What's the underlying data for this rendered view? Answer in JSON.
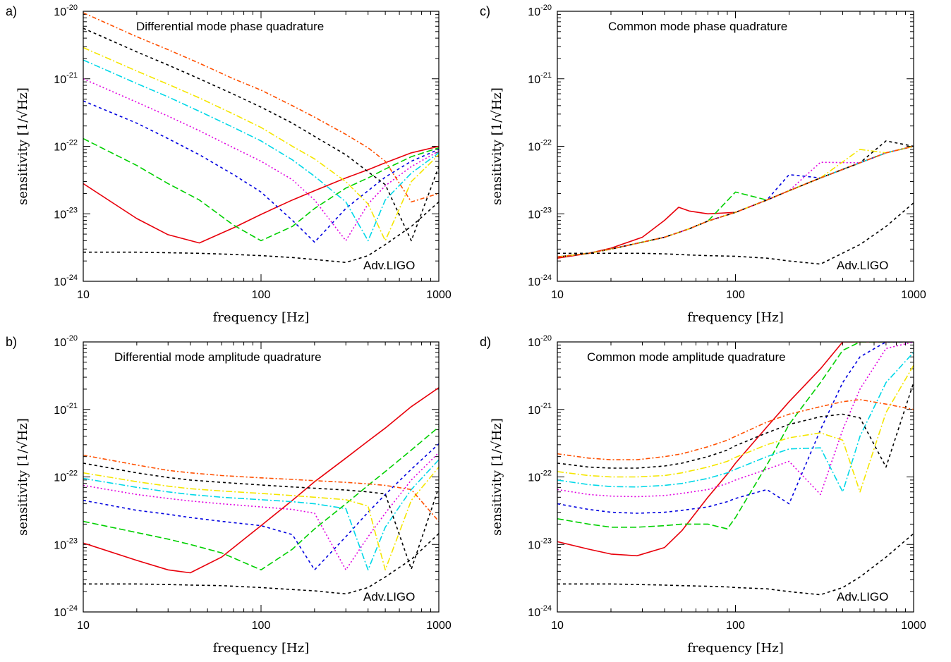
{
  "chart_data": [
    {
      "panel_label": "a)",
      "type": "line",
      "title": "Differential mode phase quadrature",
      "xlabel": "frequency [Hz]",
      "ylabel": "sensitivity [1/√Hz]",
      "xscale": "log",
      "yscale": "log",
      "xlim": [
        10,
        1000
      ],
      "ylim": [
        1e-24,
        1e-20
      ],
      "xticks": [
        "10",
        "100",
        "1000"
      ],
      "yticks": [
        {
          "base": "10",
          "exp": "-24"
        },
        {
          "base": "10",
          "exp": "-23"
        },
        {
          "base": "10",
          "exp": "-22"
        },
        {
          "base": "10",
          "exp": "-21"
        },
        {
          "base": "10",
          "exp": "-20"
        }
      ],
      "annotation": "Adv.LIGO",
      "x": [
        10,
        20,
        30,
        45,
        70,
        100,
        150,
        200,
        300,
        400,
        500,
        700,
        1000
      ],
      "series": [
        {
          "color": "#e8000b",
          "dash": "solid",
          "values": [
            2.8e-23,
            8.5e-24,
            4.9e-24,
            3.7e-24,
            6.2e-24,
            9.8e-24,
            1.6e-23,
            2.2e-23,
            3.4e-23,
            4.5e-23,
            5.7e-23,
            8e-23,
            1e-22
          ]
        },
        {
          "color": "#00d000",
          "dash": "dash",
          "values": [
            1.3e-22,
            5.2e-23,
            2.8e-23,
            1.6e-23,
            6.8e-24,
            4e-24,
            6.5e-24,
            1.2e-23,
            2.4e-23,
            3.4e-23,
            4.6e-23,
            7e-23,
            9.5e-23
          ]
        },
        {
          "color": "#0000e0",
          "dash": "short",
          "values": [
            4.7e-22,
            2.2e-22,
            1.3e-22,
            7.5e-23,
            3.8e-23,
            2.1e-23,
            8e-24,
            3.8e-24,
            1.2e-23,
            2.2e-23,
            3.5e-23,
            6e-23,
            9e-23
          ]
        },
        {
          "color": "#e000e0",
          "dash": "dot",
          "values": [
            1e-21,
            4.5e-22,
            2.8e-22,
            1.7e-22,
            9.5e-23,
            6e-23,
            3.2e-23,
            1.6e-23,
            4e-24,
            1.4e-23,
            2.6e-23,
            5e-23,
            8.5e-23
          ]
        },
        {
          "color": "#00d8e8",
          "dash": "dashdot",
          "values": [
            1.9e-21,
            8.5e-22,
            5.4e-22,
            3.3e-22,
            1.9e-22,
            1.2e-22,
            6.3e-23,
            3.6e-23,
            1.5e-23,
            4e-24,
            1.6e-23,
            4e-23,
            8e-23
          ]
        },
        {
          "color": "#f5e600",
          "dash": "dashdot",
          "values": [
            2.9e-21,
            1.3e-21,
            8.3e-22,
            5.2e-22,
            3e-22,
            1.9e-22,
            1e-22,
            6.5e-23,
            3e-23,
            1.4e-23,
            4e-24,
            3e-23,
            7.5e-23
          ]
        },
        {
          "color": "#000000",
          "dash": "short",
          "values": [
            5.6e-21,
            2.5e-21,
            1.6e-21,
            1e-21,
            5.9e-22,
            3.8e-22,
            2.2e-22,
            1.4e-22,
            7.5e-23,
            4.2e-23,
            2.7e-23,
            4e-24,
            5e-23
          ]
        },
        {
          "color": "#ff5000",
          "dash": "dashdot2",
          "values": [
            9.5e-21,
            4.2e-21,
            2.7e-21,
            1.7e-21,
            1e-21,
            6.8e-22,
            4e-22,
            2.7e-22,
            1.5e-22,
            9.5e-23,
            6e-23,
            1.5e-23,
            2e-23
          ]
        },
        {
          "color": "#000000",
          "dash": "short",
          "values": [
            2.7e-24,
            2.7e-24,
            2.65e-24,
            2.6e-24,
            2.5e-24,
            2.4e-24,
            2.25e-24,
            2.1e-24,
            1.9e-24,
            2.4e-24,
            3.5e-24,
            6.5e-24,
            1.5e-23
          ]
        }
      ]
    },
    {
      "panel_label": "b)",
      "type": "line",
      "title": "Differential mode amplitude quadrature",
      "xlabel": "frequency [Hz]",
      "ylabel": "sensitivity [1/√Hz]",
      "xscale": "log",
      "yscale": "log",
      "xlim": [
        10,
        1000
      ],
      "ylim": [
        1e-24,
        1e-20
      ],
      "xticks": [
        "10",
        "100",
        "1000"
      ],
      "yticks": [
        {
          "base": "10",
          "exp": "-24"
        },
        {
          "base": "10",
          "exp": "-23"
        },
        {
          "base": "10",
          "exp": "-22"
        },
        {
          "base": "10",
          "exp": "-21"
        },
        {
          "base": "10",
          "exp": "-20"
        }
      ],
      "annotation": "Adv.LIGO",
      "x": [
        10,
        20,
        30,
        40,
        60,
        100,
        150,
        200,
        300,
        400,
        500,
        700,
        1000
      ],
      "series": [
        {
          "color": "#e8000b",
          "dash": "solid",
          "values": [
            1.05e-23,
            5.8e-24,
            4.2e-24,
            3.8e-24,
            6.5e-24,
            1.9e-23,
            4.5e-23,
            8.5e-23,
            1.9e-22,
            3.4e-22,
            5.3e-22,
            1.1e-21,
            2.1e-21
          ]
        },
        {
          "color": "#00d000",
          "dash": "dash",
          "values": [
            2.2e-23,
            1.5e-23,
            1.2e-23,
            1e-23,
            7.5e-24,
            4.2e-24,
            8.5e-24,
            1.7e-23,
            4e-23,
            7.5e-23,
            1.2e-22,
            2.5e-22,
            5.5e-22
          ]
        },
        {
          "color": "#0000e0",
          "dash": "short",
          "values": [
            4.5e-23,
            3.2e-23,
            2.8e-23,
            2.5e-23,
            2.2e-23,
            1.9e-23,
            1.4e-23,
            4.2e-24,
            1.3e-23,
            3e-23,
            5.5e-23,
            1.3e-22,
            3.1e-22
          ]
        },
        {
          "color": "#e000e0",
          "dash": "dot",
          "values": [
            7.5e-23,
            5.5e-23,
            4.8e-23,
            4.4e-23,
            4e-23,
            3.6e-23,
            3.3e-23,
            2.9e-23,
            4.2e-24,
            1.3e-23,
            2.9e-23,
            9e-23,
            2.3e-22
          ]
        },
        {
          "color": "#00d8e8",
          "dash": "dashdot",
          "values": [
            9.5e-23,
            7e-23,
            6e-23,
            5.5e-23,
            5e-23,
            4.6e-23,
            4.3e-23,
            4e-23,
            3.4e-23,
            4.2e-24,
            1.8e-23,
            6.5e-23,
            1.8e-22
          ]
        },
        {
          "color": "#f5e600",
          "dash": "dashdot",
          "values": [
            1.15e-22,
            8.5e-23,
            7.3e-23,
            6.7e-23,
            6.2e-23,
            5.7e-23,
            5.3e-23,
            5e-23,
            4.6e-23,
            3.7e-23,
            4.2e-24,
            4.5e-23,
            1.4e-22
          ]
        },
        {
          "color": "#000000",
          "dash": "short",
          "values": [
            1.6e-22,
            1.15e-22,
            9.8e-23,
            9e-23,
            8.3e-23,
            7.6e-23,
            7.1e-23,
            6.8e-23,
            6.4e-23,
            6e-23,
            5.6e-23,
            4.3e-24,
            7e-23
          ]
        },
        {
          "color": "#ff5000",
          "dash": "dashdot2",
          "values": [
            2.1e-22,
            1.5e-22,
            1.25e-22,
            1.15e-22,
            1.05e-22,
            9.7e-23,
            9.2e-23,
            8.8e-23,
            8.3e-23,
            7.9e-23,
            7.5e-23,
            6.5e-23,
            2.2e-23
          ]
        },
        {
          "color": "#000000",
          "dash": "short",
          "values": [
            2.6e-24,
            2.6e-24,
            2.55e-24,
            2.5e-24,
            2.45e-24,
            2.3e-24,
            2.15e-24,
            2.05e-24,
            1.85e-24,
            2.3e-24,
            3.3e-24,
            6e-24,
            1.45e-23
          ]
        }
      ]
    },
    {
      "panel_label": "c)",
      "type": "line",
      "title": "Common mode phase quadrature",
      "xlabel": "frequency [Hz]",
      "ylabel": "sensitivity [1/√Hz]",
      "xscale": "log",
      "yscale": "log",
      "xlim": [
        10,
        1000
      ],
      "ylim": [
        1e-24,
        1e-20
      ],
      "xticks": [
        "10",
        "100",
        "1000"
      ],
      "yticks": [
        {
          "base": "10",
          "exp": "-24"
        },
        {
          "base": "10",
          "exp": "-23"
        },
        {
          "base": "10",
          "exp": "-22"
        },
        {
          "base": "10",
          "exp": "-21"
        },
        {
          "base": "10",
          "exp": "-20"
        }
      ],
      "annotation": "Adv.LIGO",
      "x": [
        10,
        15,
        20,
        30,
        40,
        48,
        55,
        70,
        100,
        150,
        200,
        300,
        500,
        700,
        1000
      ],
      "series": [
        {
          "color": "#e8000b",
          "dash": "solid",
          "values": [
            2.2e-24,
            2.6e-24,
            3.1e-24,
            4.5e-24,
            8e-24,
            1.25e-23,
            1.1e-23,
            1e-23,
            1.05e-23,
            1.6e-23,
            2.2e-23,
            3.4e-23,
            5.7e-23,
            8e-23,
            1e-22
          ]
        },
        {
          "color": "#00d000",
          "dash": "dash",
          "values": [
            2.3e-24,
            2.6e-24,
            3e-24,
            3.8e-24,
            4.5e-24,
            5.3e-24,
            6e-24,
            7.8e-24,
            2.1e-23,
            1.6e-23,
            2.2e-23,
            3.4e-23,
            5.7e-23,
            8e-23,
            1e-22
          ]
        },
        {
          "color": "#0000e0",
          "dash": "short",
          "values": [
            2.3e-24,
            2.6e-24,
            3e-24,
            3.8e-24,
            4.5e-24,
            5.3e-24,
            6e-24,
            7.8e-24,
            1.05e-23,
            1.6e-23,
            3.8e-23,
            3.4e-23,
            5.7e-23,
            8e-23,
            1e-22
          ]
        },
        {
          "color": "#e000e0",
          "dash": "dot",
          "values": [
            2.3e-24,
            2.6e-24,
            3e-24,
            3.8e-24,
            4.5e-24,
            5.3e-24,
            6e-24,
            7.8e-24,
            1.05e-23,
            1.6e-23,
            2.2e-23,
            5.8e-23,
            5.7e-23,
            8e-23,
            1e-22
          ]
        },
        {
          "color": "#00d8e8",
          "dash": "dashdot",
          "values": [
            2.3e-24,
            2.6e-24,
            3e-24,
            3.8e-24,
            4.5e-24,
            5.3e-24,
            6e-24,
            7.8e-24,
            1.05e-23,
            1.6e-23,
            2.2e-23,
            3.4e-23,
            5.7e-23,
            8e-23,
            1e-22
          ]
        },
        {
          "color": "#f5e600",
          "dash": "dashdot",
          "values": [
            2.3e-24,
            2.6e-24,
            3e-24,
            3.8e-24,
            4.5e-24,
            5.3e-24,
            6e-24,
            7.8e-24,
            1.05e-23,
            1.6e-23,
            2.2e-23,
            3.4e-23,
            9e-23,
            8e-23,
            1e-22
          ]
        },
        {
          "color": "#000000",
          "dash": "short",
          "values": [
            2.3e-24,
            2.6e-24,
            3e-24,
            3.8e-24,
            4.5e-24,
            5.3e-24,
            6e-24,
            7.8e-24,
            1.05e-23,
            1.6e-23,
            2.2e-23,
            3.4e-23,
            5.7e-23,
            1.2e-22,
            1e-22
          ]
        },
        {
          "color": "#ff5000",
          "dash": "dashdot2",
          "values": [
            2.3e-24,
            2.6e-24,
            3e-24,
            3.8e-24,
            4.5e-24,
            5.3e-24,
            6e-24,
            7.8e-24,
            1.05e-23,
            1.6e-23,
            2.2e-23,
            3.4e-23,
            5.7e-23,
            8e-23,
            1e-22
          ]
        },
        {
          "color": "#000000",
          "dash": "short",
          "values": [
            2.6e-24,
            2.6e-24,
            2.6e-24,
            2.6e-24,
            2.55e-24,
            2.5e-24,
            2.45e-24,
            2.4e-24,
            2.35e-24,
            2.2e-24,
            2e-24,
            1.8e-24,
            3.5e-24,
            6.5e-24,
            1.45e-23
          ]
        }
      ]
    },
    {
      "panel_label": "d)",
      "type": "line",
      "title": "Common mode amplitude quadrature",
      "xlabel": "frequency [Hz]",
      "ylabel": "sensitivity [1/√Hz]",
      "xscale": "log",
      "yscale": "log",
      "xlim": [
        10,
        1000
      ],
      "ylim": [
        1e-24,
        1e-20
      ],
      "xticks": [
        "10",
        "100",
        "1000"
      ],
      "yticks": [
        {
          "base": "10",
          "exp": "-24"
        },
        {
          "base": "10",
          "exp": "-23"
        },
        {
          "base": "10",
          "exp": "-22"
        },
        {
          "base": "10",
          "exp": "-21"
        },
        {
          "base": "10",
          "exp": "-20"
        }
      ],
      "annotation": "Adv.LIGO",
      "x": [
        10,
        15,
        20,
        28,
        40,
        50,
        70,
        90,
        100,
        150,
        200,
        300,
        400,
        500,
        700,
        1000
      ],
      "series": [
        {
          "color": "#e8000b",
          "dash": "solid",
          "values": [
            1.1e-23,
            8.5e-24,
            7.2e-24,
            6.8e-24,
            9e-24,
            1.6e-23,
            5e-23,
            1.1e-22,
            1.6e-22,
            5.5e-22,
            1.3e-21,
            4e-21,
            1e-20,
            1e-20,
            1e-20,
            1e-20
          ]
        },
        {
          "color": "#00d000",
          "dash": "dash",
          "values": [
            2.4e-23,
            2e-23,
            1.8e-23,
            1.8e-23,
            1.9e-23,
            2e-23,
            2e-23,
            1.7e-23,
            2.5e-23,
            1.5e-22,
            6e-22,
            2.5e-21,
            7.5e-21,
            1e-20,
            1e-20,
            1e-20
          ]
        },
        {
          "color": "#0000e0",
          "dash": "short",
          "values": [
            4e-23,
            3.3e-23,
            3e-23,
            2.9e-23,
            3e-23,
            3.2e-23,
            3.6e-23,
            4.3e-23,
            4.8e-23,
            6.5e-23,
            4e-23,
            5e-22,
            2.5e-21,
            6e-21,
            1e-20,
            1e-20
          ]
        },
        {
          "color": "#e000e0",
          "dash": "dot",
          "values": [
            6.5e-23,
            5.5e-23,
            5.2e-23,
            5.1e-23,
            5.3e-23,
            5.7e-23,
            6.5e-23,
            8e-23,
            9e-23,
            1.3e-22,
            1.7e-22,
            5.5e-23,
            5e-22,
            2e-21,
            8e-21,
            1e-20
          ]
        },
        {
          "color": "#00d8e8",
          "dash": "dashdot",
          "values": [
            9e-23,
            7.7e-23,
            7.2e-23,
            7.1e-23,
            7.5e-23,
            8e-23,
            9.5e-23,
            1.15e-22,
            1.3e-22,
            2e-22,
            2.6e-22,
            2.7e-22,
            6e-23,
            4e-22,
            2.5e-21,
            7e-21
          ]
        },
        {
          "color": "#f5e600",
          "dash": "dashdot",
          "values": [
            1.2e-22,
            1.05e-22,
            1e-22,
            1e-22,
            1.05e-22,
            1.15e-22,
            1.4e-22,
            1.7e-22,
            1.95e-22,
            3e-22,
            3.8e-22,
            4.5e-22,
            3.5e-22,
            6e-23,
            9e-22,
            4.5e-21
          ]
        },
        {
          "color": "#000000",
          "dash": "short",
          "values": [
            1.6e-22,
            1.4e-22,
            1.35e-22,
            1.35e-22,
            1.45e-22,
            1.6e-22,
            2e-22,
            2.5e-22,
            2.9e-22,
            4.5e-22,
            6e-22,
            7.8e-22,
            8.5e-22,
            7.5e-22,
            1.4e-22,
            2.5e-21
          ]
        },
        {
          "color": "#ff5000",
          "dash": "dashdot2",
          "values": [
            2.2e-22,
            1.9e-22,
            1.8e-22,
            1.8e-22,
            2e-22,
            2.2e-22,
            2.8e-22,
            3.5e-22,
            4e-22,
            6.5e-22,
            8.5e-22,
            1.1e-21,
            1.3e-21,
            1.4e-21,
            1.2e-21,
            1e-21
          ]
        },
        {
          "color": "#000000",
          "dash": "short",
          "values": [
            2.6e-24,
            2.6e-24,
            2.6e-24,
            2.55e-24,
            2.5e-24,
            2.45e-24,
            2.4e-24,
            2.35e-24,
            2.3e-24,
            2.2e-24,
            2e-24,
            1.8e-24,
            2.3e-24,
            3.3e-24,
            6.5e-24,
            1.45e-23
          ]
        }
      ]
    }
  ]
}
